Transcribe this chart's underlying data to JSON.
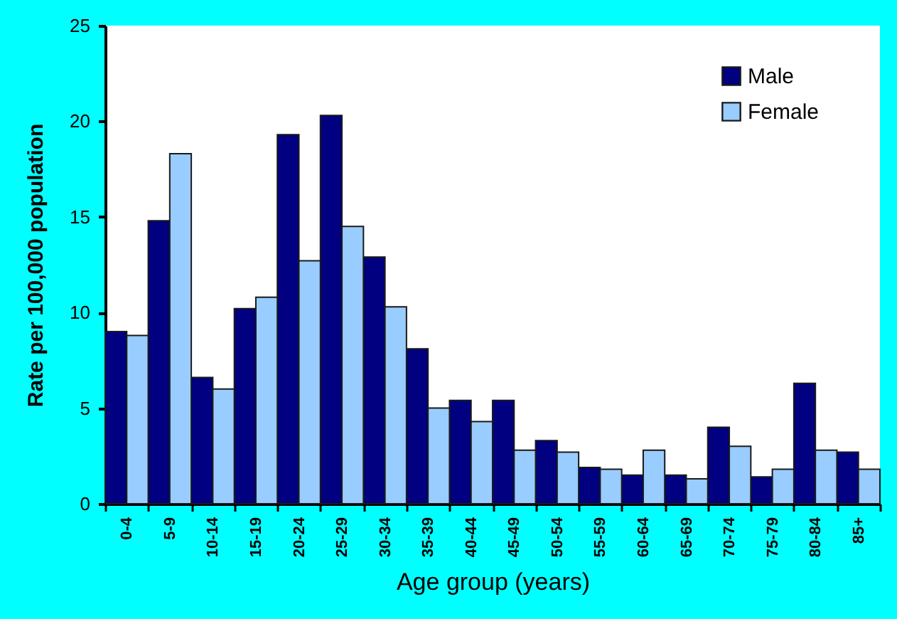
{
  "chart_data": {
    "type": "bar",
    "xlabel": "Age group (years)",
    "ylabel": "Rate per 100,000 population",
    "categories": [
      "0-4",
      "5-9",
      "10-14",
      "15-19",
      "20-24",
      "25-29",
      "30-34",
      "35-39",
      "40-44",
      "45-49",
      "50-54",
      "55-59",
      "60-64",
      "65-69",
      "70-74",
      "75-79",
      "80-84",
      "85+"
    ],
    "series": [
      {
        "name": "Male",
        "color": "#000080",
        "values": [
          9.0,
          14.8,
          6.6,
          10.2,
          19.3,
          20.3,
          12.9,
          8.1,
          5.4,
          5.4,
          3.3,
          1.9,
          1.5,
          1.5,
          4.0,
          1.4,
          6.3,
          2.7
        ]
      },
      {
        "name": "Female",
        "color": "#99ccff",
        "values": [
          8.8,
          18.3,
          6.0,
          10.8,
          12.7,
          14.5,
          10.3,
          5.0,
          4.3,
          2.8,
          2.7,
          1.8,
          2.8,
          1.3,
          3.0,
          1.8,
          2.8,
          1.8
        ]
      }
    ],
    "ylim": [
      0,
      25
    ],
    "yticks": [
      0,
      5,
      10,
      15,
      20,
      25
    ],
    "grid": false,
    "legend": "top right"
  }
}
